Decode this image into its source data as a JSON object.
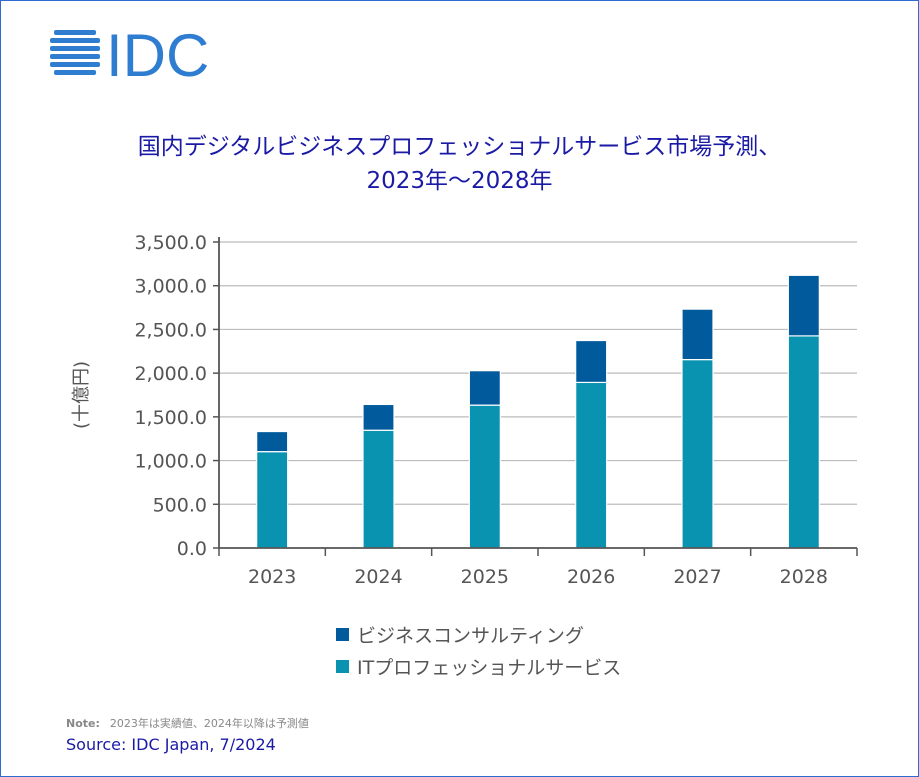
{
  "logo_text": "IDC",
  "title_line1": "国内デジタルビジネスプロフェッショナルサービス市場予測、",
  "title_line2": "2023年～2028年",
  "colors": {
    "it_services": "#0a93b1",
    "business_consulting": "#005a9c",
    "logo": "#2e7dd1",
    "title": "#1a1aa6"
  },
  "chart_data": {
    "type": "bar",
    "stacked": true,
    "categories": [
      "2023",
      "2024",
      "2025",
      "2026",
      "2027",
      "2028"
    ],
    "series": [
      {
        "name": "ITプロフェッショナルサービス",
        "values": [
          1102,
          1347,
          1634,
          1894,
          2155,
          2426
        ]
      },
      {
        "name": "ビジネスコンサルティング",
        "values": [
          230,
          295,
          394,
          479,
          577,
          693
        ]
      }
    ],
    "ylabel": "(十億円)",
    "ylim": [
      0,
      3500
    ],
    "yticks": [
      "0.0",
      "500.0",
      "1,000.0",
      "1,500.0",
      "2,000.0",
      "2,500.0",
      "3,000.0",
      "3,500.0"
    ],
    "ytick_values": [
      0,
      500,
      1000,
      1500,
      2000,
      2500,
      3000,
      3500
    ],
    "grid": true,
    "legend": "bottom"
  },
  "legend": [
    "ビジネスコンサルティング",
    "ITプロフェッショナルサービス"
  ],
  "note_label": "Note:",
  "note_text": "2023年は実績値、2024年以降は予測値",
  "source": "Source: IDC Japan, 7/2024"
}
